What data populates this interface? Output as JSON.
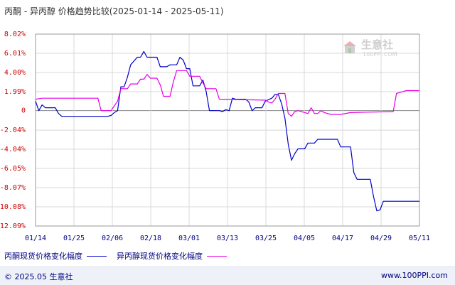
{
  "title": "丙酮 - 异丙醇 价格趋势比较(2025-01-14 - 2025-05-11)",
  "watermark": {
    "text": "生意社",
    "sub": "100PPI.COM"
  },
  "footer": {
    "copyright": "© 2025.05 生意社",
    "url": "www.100PPI.com"
  },
  "colors": {
    "series1": "#0000cc",
    "series2": "#e600e6",
    "axis_labels": "#cc0000",
    "ticks": "#000080"
  },
  "chart_data": {
    "type": "line",
    "title": "丙酮 - 异丙醇 价格趋势比较(2025-01-14 - 2025-05-11)",
    "x_start": "2025-01-14",
    "x_end": "2025-05-11",
    "x_tick_labels": [
      "01/14",
      "01/25",
      "02/06",
      "02/18",
      "03/01",
      "03/13",
      "03/25",
      "04/05",
      "04/17",
      "04/29",
      "05/11"
    ],
    "y_tick_labels": [
      "8.02%",
      "6.01%",
      "4.00%",
      "1.99%",
      "0",
      "-2.04%",
      "-4.04%",
      "-6.05%",
      "-8.07%",
      "-10.08%",
      "-12.09%"
    ],
    "y_ticks": [
      8.02,
      6.01,
      4.0,
      1.99,
      0,
      -2.04,
      -4.04,
      -6.05,
      -8.07,
      -10.08,
      -12.09
    ],
    "ylim": [
      -12.09,
      8.02
    ],
    "grid": true,
    "legend_position": "bottom",
    "series": [
      {
        "name": "丙酮现货价格变化幅度",
        "points": [
          [
            "2025-01-14",
            1.0
          ],
          [
            "2025-01-15",
            0.0
          ],
          [
            "2025-01-16",
            0.6
          ],
          [
            "2025-01-17",
            0.3
          ],
          [
            "2025-01-20",
            0.3
          ],
          [
            "2025-01-21",
            -0.3
          ],
          [
            "2025-01-22",
            -0.6
          ],
          [
            "2025-01-24",
            -0.6
          ],
          [
            "2025-02-05",
            -0.6
          ],
          [
            "2025-02-06",
            -0.5
          ],
          [
            "2025-02-07",
            -0.2
          ],
          [
            "2025-02-08",
            0.0
          ],
          [
            "2025-02-09",
            2.5
          ],
          [
            "2025-02-10",
            2.5
          ],
          [
            "2025-02-11",
            3.5
          ],
          [
            "2025-02-12",
            4.8
          ],
          [
            "2025-02-14",
            5.6
          ],
          [
            "2025-02-15",
            5.6
          ],
          [
            "2025-02-16",
            6.2
          ],
          [
            "2025-02-17",
            5.6
          ],
          [
            "2025-02-20",
            5.6
          ],
          [
            "2025-02-21",
            4.6
          ],
          [
            "2025-02-23",
            4.6
          ],
          [
            "2025-02-24",
            4.8
          ],
          [
            "2025-02-26",
            4.8
          ],
          [
            "2025-02-27",
            5.6
          ],
          [
            "2025-02-28",
            5.3
          ],
          [
            "2025-03-01",
            4.4
          ],
          [
            "2025-03-02",
            4.4
          ],
          [
            "2025-03-03",
            2.6
          ],
          [
            "2025-03-05",
            2.6
          ],
          [
            "2025-03-06",
            3.2
          ],
          [
            "2025-03-07",
            2.0
          ],
          [
            "2025-03-08",
            0.0
          ],
          [
            "2025-03-11",
            0.0
          ],
          [
            "2025-03-12",
            -0.1
          ],
          [
            "2025-03-13",
            0.1
          ],
          [
            "2025-03-14",
            0.0
          ],
          [
            "2025-03-15",
            1.3
          ],
          [
            "2025-03-16",
            1.2
          ],
          [
            "2025-03-19",
            1.2
          ],
          [
            "2025-03-20",
            0.9
          ],
          [
            "2025-03-21",
            0.0
          ],
          [
            "2025-03-22",
            0.3
          ],
          [
            "2025-03-24",
            0.3
          ],
          [
            "2025-03-25",
            1.0
          ],
          [
            "2025-03-27",
            1.3
          ],
          [
            "2025-03-28",
            1.7
          ],
          [
            "2025-03-29",
            1.7
          ],
          [
            "2025-03-30",
            0.7
          ],
          [
            "2025-03-31",
            -0.8
          ],
          [
            "2025-04-01",
            -3.5
          ],
          [
            "2025-04-02",
            -5.2
          ],
          [
            "2025-04-03",
            -4.5
          ],
          [
            "2025-04-04",
            -4.0
          ],
          [
            "2025-04-06",
            -4.0
          ],
          [
            "2025-04-07",
            -3.4
          ],
          [
            "2025-04-09",
            -3.4
          ],
          [
            "2025-04-10",
            -3.0
          ],
          [
            "2025-04-16",
            -3.0
          ],
          [
            "2025-04-17",
            -3.8
          ],
          [
            "2025-04-20",
            -3.8
          ],
          [
            "2025-04-21",
            -6.5
          ],
          [
            "2025-04-22",
            -7.2
          ],
          [
            "2025-04-26",
            -7.2
          ],
          [
            "2025-04-27",
            -9.0
          ],
          [
            "2025-04-28",
            -10.5
          ],
          [
            "2025-04-29",
            -10.4
          ],
          [
            "2025-04-30",
            -9.5
          ],
          [
            "2025-05-11",
            -9.5
          ]
        ]
      },
      {
        "name": "异丙醇现货价格变化幅度",
        "points": [
          [
            "2025-01-14",
            1.2
          ],
          [
            "2025-01-16",
            1.3
          ],
          [
            "2025-02-02",
            1.3
          ],
          [
            "2025-02-03",
            0.0
          ],
          [
            "2025-02-06",
            0.0
          ],
          [
            "2025-02-07",
            0.5
          ],
          [
            "2025-02-08",
            1.0
          ],
          [
            "2025-02-09",
            2.3
          ],
          [
            "2025-02-11",
            2.3
          ],
          [
            "2025-02-12",
            2.8
          ],
          [
            "2025-02-14",
            2.8
          ],
          [
            "2025-02-15",
            3.3
          ],
          [
            "2025-02-16",
            3.3
          ],
          [
            "2025-02-17",
            3.8
          ],
          [
            "2025-02-18",
            3.4
          ],
          [
            "2025-02-20",
            3.4
          ],
          [
            "2025-02-21",
            2.7
          ],
          [
            "2025-02-22",
            1.5
          ],
          [
            "2025-02-24",
            1.5
          ],
          [
            "2025-02-25",
            3.0
          ],
          [
            "2025-02-26",
            4.2
          ],
          [
            "2025-03-01",
            4.2
          ],
          [
            "2025-03-02",
            3.6
          ],
          [
            "2025-03-05",
            3.6
          ],
          [
            "2025-03-06",
            2.9
          ],
          [
            "2025-03-07",
            2.3
          ],
          [
            "2025-03-10",
            2.3
          ],
          [
            "2025-03-11",
            1.2
          ],
          [
            "2025-03-25",
            1.1
          ],
          [
            "2025-03-26",
            0.9
          ],
          [
            "2025-03-27",
            0.8
          ],
          [
            "2025-03-28",
            1.2
          ],
          [
            "2025-03-29",
            1.8
          ],
          [
            "2025-03-31",
            1.8
          ],
          [
            "2025-04-01",
            -0.3
          ],
          [
            "2025-04-02",
            -0.6
          ],
          [
            "2025-04-03",
            -0.1
          ],
          [
            "2025-04-04",
            0.0
          ],
          [
            "2025-04-07",
            -0.3
          ],
          [
            "2025-04-08",
            0.3
          ],
          [
            "2025-04-09",
            -0.3
          ],
          [
            "2025-04-10",
            -0.3
          ],
          [
            "2025-04-11",
            0.0
          ],
          [
            "2025-04-12",
            -0.2
          ],
          [
            "2025-04-14",
            -0.4
          ],
          [
            "2025-04-17",
            -0.4
          ],
          [
            "2025-04-20",
            -0.2
          ],
          [
            "2025-05-03",
            -0.1
          ],
          [
            "2025-05-04",
            1.8
          ],
          [
            "2025-05-06",
            2.0
          ],
          [
            "2025-05-07",
            2.1
          ],
          [
            "2025-05-11",
            2.1
          ]
        ]
      }
    ]
  }
}
